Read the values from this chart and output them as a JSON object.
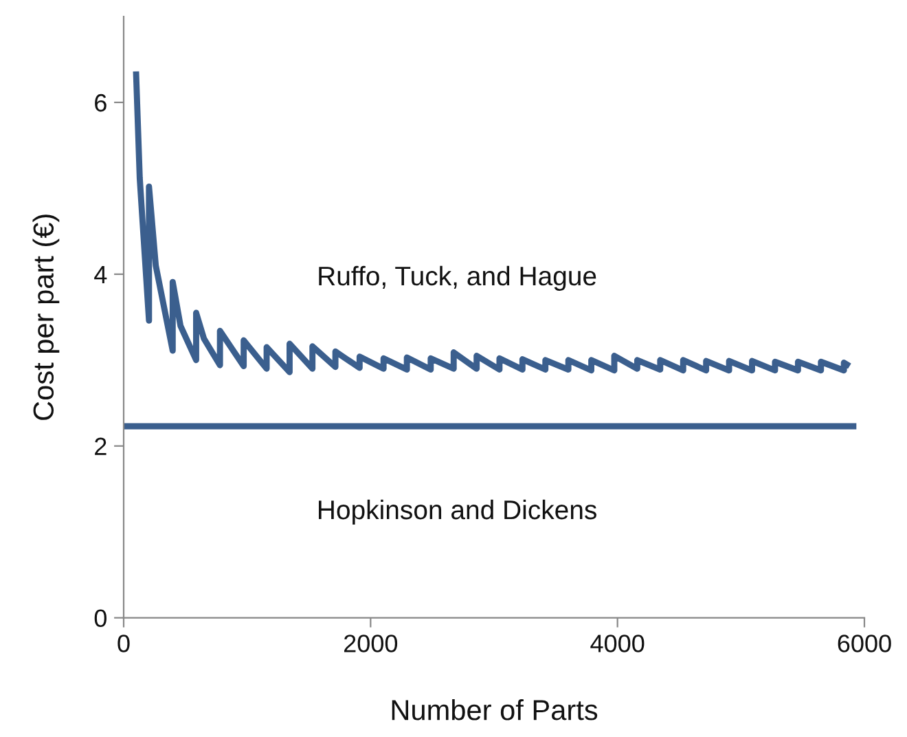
{
  "chart_data": {
    "type": "line",
    "xlabel": "Number of Parts",
    "ylabel": "Cost per part (€)",
    "xlim": [
      0,
      6000
    ],
    "ylim": [
      0,
      7
    ],
    "xticks": [
      0,
      2000,
      4000,
      6000
    ],
    "yticks": [
      0,
      2,
      4,
      6
    ],
    "grid": false,
    "marker": "none",
    "line_style": "solid",
    "series": [
      {
        "name": "Ruffo, Tuck, and Hague",
        "color": "#3b5f8e",
        "x": [
          100,
          130,
          205,
          205,
          260,
          397,
          397,
          460,
          587,
          587,
          650,
          780,
          780,
          972,
          972,
          1158,
          1158,
          1344,
          1344,
          1529,
          1529,
          1715,
          1715,
          1911,
          1911,
          2105,
          2105,
          2294,
          2294,
          2487,
          2487,
          2673,
          2673,
          2859,
          2859,
          3044,
          3044,
          3230,
          3230,
          3416,
          3416,
          3602,
          3602,
          3788,
          3788,
          3974,
          3974,
          4160,
          4160,
          4346,
          4346,
          4532,
          4532,
          4718,
          4718,
          4904,
          4904,
          5090,
          5090,
          5276,
          5276,
          5462,
          5462,
          5648,
          5648,
          5834,
          5834,
          5880
        ],
        "values": [
          6.36,
          5.12,
          3.46,
          5.02,
          4.1,
          3.11,
          3.91,
          3.4,
          3.0,
          3.55,
          3.25,
          2.94,
          3.34,
          2.93,
          3.23,
          2.9,
          3.15,
          2.86,
          3.19,
          2.9,
          3.16,
          2.92,
          3.1,
          2.91,
          3.04,
          2.9,
          3.02,
          2.89,
          3.03,
          2.89,
          3.02,
          2.9,
          3.09,
          2.9,
          3.05,
          2.89,
          3.02,
          2.89,
          3.01,
          2.89,
          3.0,
          2.89,
          3.0,
          2.88,
          3.0,
          2.88,
          3.05,
          2.9,
          3.0,
          2.89,
          3.0,
          2.88,
          3.0,
          2.88,
          2.99,
          2.88,
          2.99,
          2.88,
          2.99,
          2.88,
          2.98,
          2.88,
          2.98,
          2.88,
          2.98,
          2.88,
          2.97,
          2.93
        ]
      },
      {
        "name": "Hopkinson and Dickens",
        "color": "#3b5f8e",
        "x": [
          0,
          5935
        ],
        "values": [
          2.23,
          2.23
        ]
      }
    ]
  }
}
